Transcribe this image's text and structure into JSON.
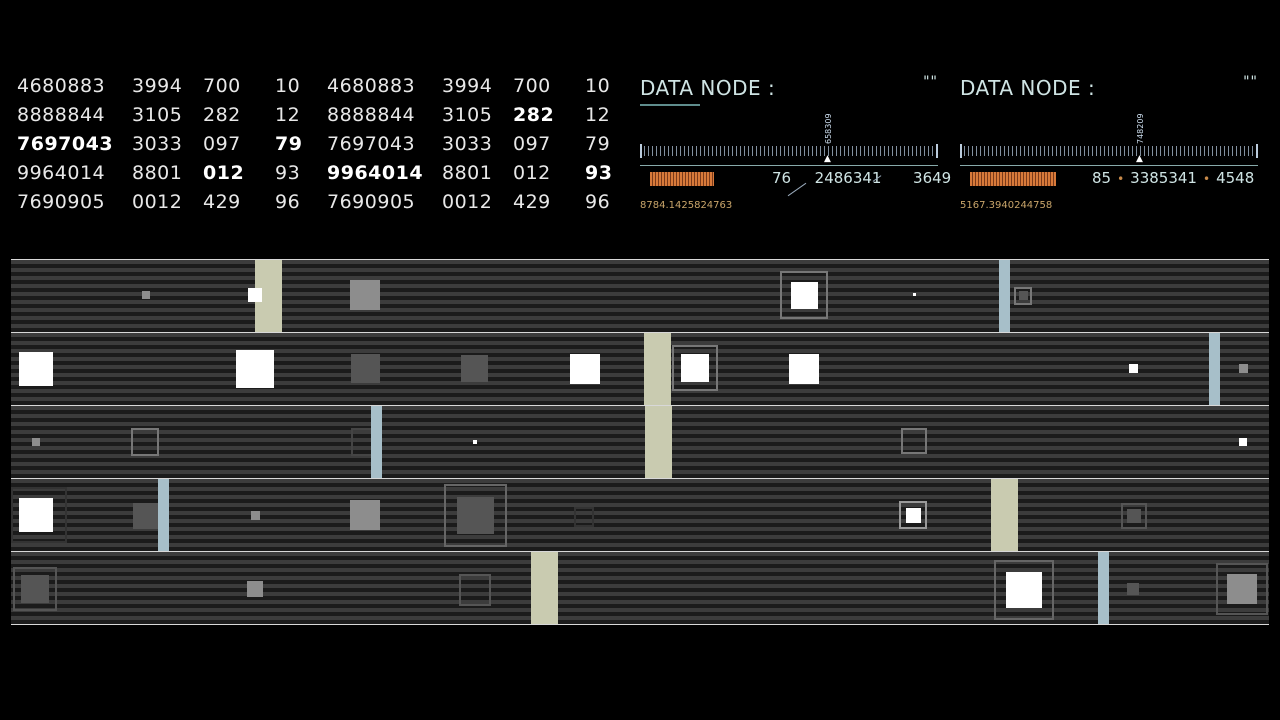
{
  "grid_left": {
    "rows": [
      [
        "4680883",
        "3994",
        "700",
        "10"
      ],
      [
        "8888844",
        "3105",
        "282",
        "12"
      ],
      [
        "7697043",
        "3033",
        "097",
        "79"
      ],
      [
        "9964014",
        "8801",
        "012",
        "93"
      ],
      [
        "7690905",
        "0012",
        "429",
        "96"
      ]
    ]
  },
  "grid_right": {
    "rows": [
      [
        "4680883",
        "3994",
        "700",
        "10"
      ],
      [
        "8888844",
        "3105",
        "282",
        "12"
      ],
      [
        "7697043",
        "3033",
        "097",
        "79"
      ],
      [
        "9964014",
        "8801",
        "012",
        "93"
      ],
      [
        "7690905",
        "0012",
        "429",
        "96"
      ]
    ]
  },
  "node1": {
    "title": "DATA NODE :",
    "quote": "\"\"",
    "marker_label": "658309",
    "v1": "76",
    "v2": "2486341",
    "v3": "3649",
    "sub": "8784.1425824763"
  },
  "node2": {
    "title": "DATA NODE :",
    "quote": "\"\"",
    "marker_label": "748209",
    "v1": "85",
    "v2": "3385341",
    "v3": "4548",
    "sub": "5167.3940244758",
    "sep": "•"
  },
  "colors": {
    "tan_bar": "#c9cbb0",
    "blue_bar": "#a7bfc9",
    "orange": "#d87a3a",
    "teal_text": "#cfe4e4"
  }
}
